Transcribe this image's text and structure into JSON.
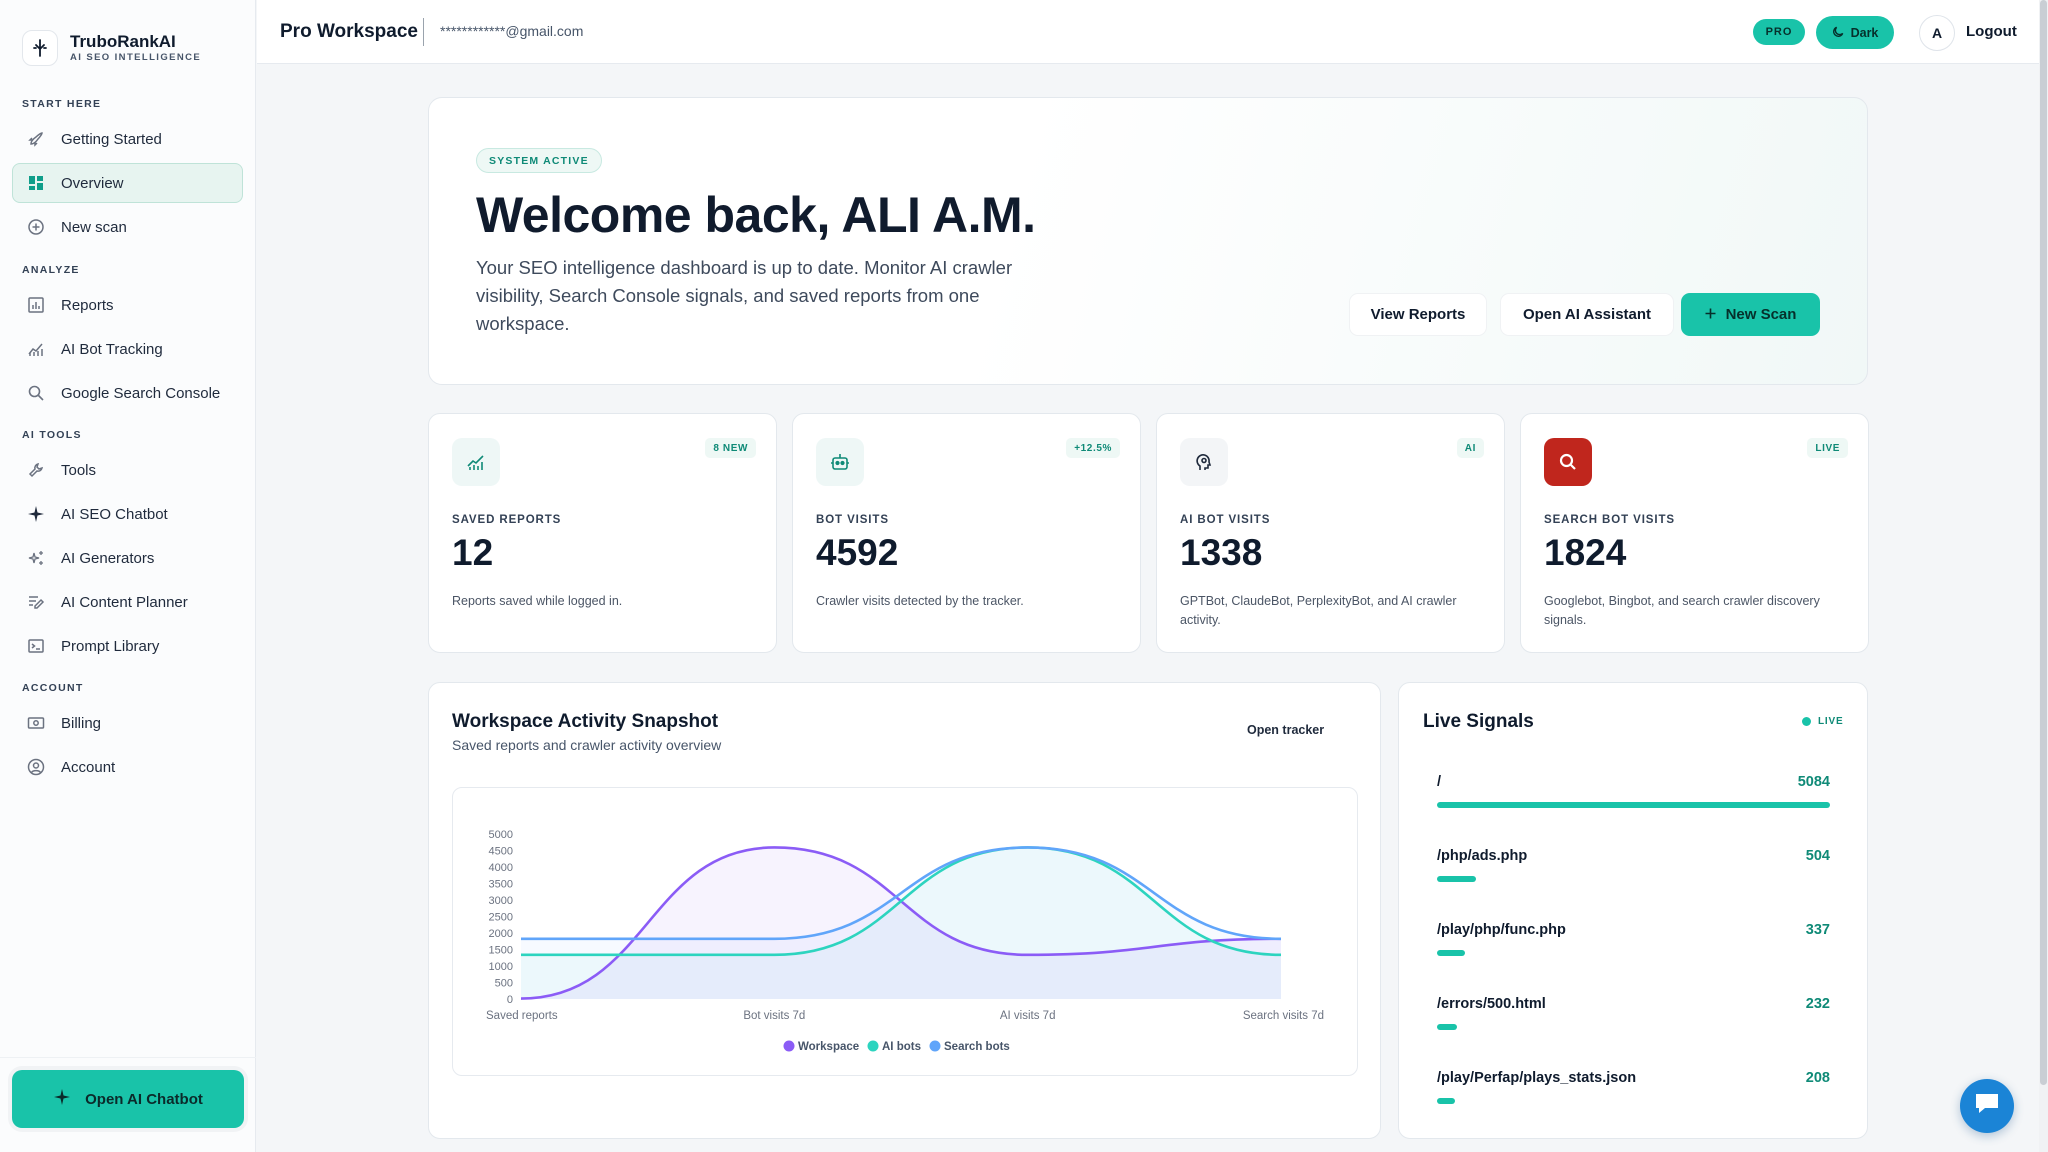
{
  "brand": {
    "name": "TruboRankAI",
    "tagline": "AI SEO INTELLIGENCE"
  },
  "sidebar": {
    "sections": [
      {
        "label": "START HERE"
      },
      {
        "label": "ANALYZE"
      },
      {
        "label": "AI TOOLS"
      },
      {
        "label": "ACCOUNT"
      }
    ],
    "items": [
      {
        "label": "Getting Started",
        "icon": "rocket-icon"
      },
      {
        "label": "Overview",
        "icon": "dashboard-icon",
        "active": true
      },
      {
        "label": "New scan",
        "icon": "plus-circle-icon"
      },
      {
        "label": "Reports",
        "icon": "bar-chart-icon"
      },
      {
        "label": "AI Bot Tracking",
        "icon": "line-chart-icon"
      },
      {
        "label": "Google Search Console",
        "icon": "search-icon"
      },
      {
        "label": "Tools",
        "icon": "wrench-icon"
      },
      {
        "label": "AI SEO Chatbot",
        "icon": "sparkle-icon"
      },
      {
        "label": "AI Generators",
        "icon": "sparkles-icon"
      },
      {
        "label": "AI Content Planner",
        "icon": "pen-lines-icon"
      },
      {
        "label": "Prompt Library",
        "icon": "terminal-icon"
      },
      {
        "label": "Billing",
        "icon": "banknote-icon"
      },
      {
        "label": "Account",
        "icon": "user-circle-icon"
      }
    ],
    "chatbot_button": "Open AI Chatbot"
  },
  "topbar": {
    "workspace": "Pro Workspace",
    "email": "************@gmail.com",
    "pro_badge": "PRO",
    "theme_button": "Dark",
    "avatar_letter": "A",
    "logout": "Logout"
  },
  "hero": {
    "badge": "SYSTEM ACTIVE",
    "title": "Welcome back, ALI A.M.",
    "description": "Your SEO intelligence dashboard is up to date. Monitor AI crawler visibility, Search Console signals, and saved reports from one workspace.",
    "buttons": {
      "view_reports": "View Reports",
      "open_assistant": "Open AI Assistant",
      "new_scan": "New Scan"
    }
  },
  "stats": [
    {
      "chip": "8 NEW",
      "label": "SAVED REPORTS",
      "value": "12",
      "note": "Reports saved while logged in.",
      "icon": "trend-chart-icon"
    },
    {
      "chip": "+12.5%",
      "label": "BOT VISITS",
      "value": "4592",
      "note": "Crawler visits detected by the tracker.",
      "icon": "robot-icon"
    },
    {
      "chip": "AI",
      "label": "AI BOT VISITS",
      "value": "1338",
      "note": "GPTBot, ClaudeBot, PerplexityBot, and AI crawler activity.",
      "icon": "brain-icon"
    },
    {
      "chip": "LIVE",
      "label": "SEARCH BOT VISITS",
      "value": "1824",
      "note": "Googlebot, Bingbot, and search crawler discovery signals.",
      "icon": "search-icon"
    }
  ],
  "activity": {
    "title": "Workspace Activity Snapshot",
    "subtitle": "Saved reports and crawler activity overview",
    "open_tracker": "Open tracker"
  },
  "chart_data": {
    "type": "line",
    "categories": [
      "Saved reports",
      "Bot visits 7d",
      "AI visits 7d",
      "Search visits 7d"
    ],
    "series": [
      {
        "name": "Workspace",
        "values": [
          12,
          4592,
          1338,
          1824
        ],
        "color": "#8b5cf6"
      },
      {
        "name": "AI bots",
        "values": [
          1338,
          1338,
          4592,
          1338
        ],
        "color": "#2dd4bf"
      },
      {
        "name": "Search bots",
        "values": [
          1824,
          1824,
          4592,
          1824
        ],
        "color": "#60a5fa"
      }
    ],
    "yticks": [
      "5000",
      "4500",
      "4000",
      "3500",
      "3000",
      "2500",
      "2000",
      "1500",
      "1000",
      "500",
      "0"
    ],
    "ylim": [
      0,
      5000
    ],
    "smooth": true,
    "legend": "bottom"
  },
  "signals": {
    "title": "Live Signals",
    "live": "LIVE",
    "rows": [
      {
        "path": "/",
        "count": "5084",
        "fraction": 1.0
      },
      {
        "path": "/php/ads.php",
        "count": "504",
        "fraction": 0.1
      },
      {
        "path": "/play/php/func.php",
        "count": "337",
        "fraction": 0.07
      },
      {
        "path": "/errors/500.html",
        "count": "232",
        "fraction": 0.05
      },
      {
        "path": "/play/Perfap/plays_stats.json",
        "count": "208",
        "fraction": 0.045
      }
    ]
  }
}
